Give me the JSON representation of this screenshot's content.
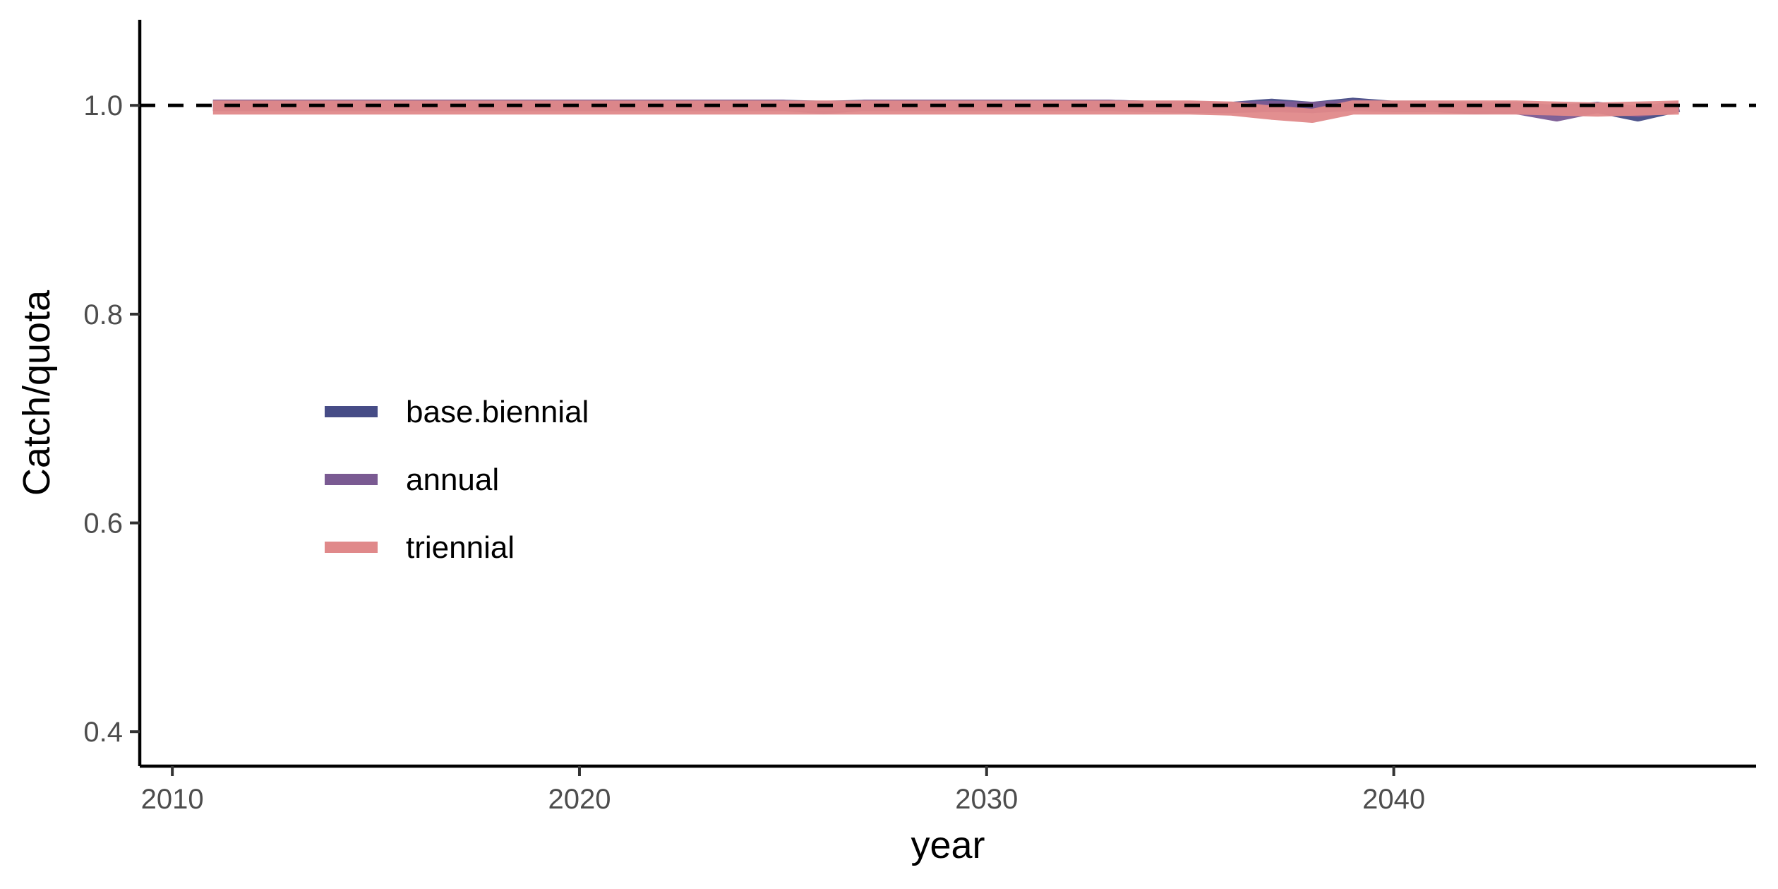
{
  "chart_data": {
    "type": "line",
    "xlabel": "year",
    "ylabel": "Catch/quota",
    "xlim": [
      2009.2,
      2048.9
    ],
    "ylim": [
      0.367,
      1.082
    ],
    "x_ticks": [
      "2010",
      "2020",
      "2030",
      "2040"
    ],
    "x_tick_values": [
      2010,
      2020,
      2030,
      2040
    ],
    "y_ticks": [
      "0.4",
      "0.6",
      "0.8",
      "1.0"
    ],
    "y_tick_values": [
      0.4,
      0.6,
      0.8,
      1.0
    ],
    "reference_line": {
      "y": 1.0,
      "style": "dashed",
      "color": "#000000"
    },
    "grid": false,
    "legend_position": "inside-left-middle",
    "x": [
      2011,
      2012,
      2013,
      2014,
      2015,
      2016,
      2017,
      2018,
      2019,
      2020,
      2021,
      2022,
      2023,
      2024,
      2025,
      2026,
      2027,
      2028,
      2029,
      2030,
      2031,
      2032,
      2033,
      2034,
      2035,
      2036,
      2037,
      2038,
      2039,
      2040,
      2041,
      2042,
      2043,
      2044,
      2045,
      2046,
      2047
    ],
    "series": [
      {
        "name": "base.biennial",
        "color": "#464c86",
        "values": [
          1.0,
          1.0,
          1.0,
          1.0,
          1.0,
          1.0,
          1.0,
          1.0,
          1.0,
          1.0,
          1.0,
          1.0,
          1.0,
          1.0,
          1.0,
          0.999,
          1.0,
          1.0,
          1.0,
          1.0,
          1.0,
          1.0,
          1.0,
          0.999,
          0.998,
          0.998,
          1.001,
          0.998,
          1.002,
          0.999,
          0.999,
          0.997,
          0.998,
          0.995,
          0.998,
          0.99,
          0.999
        ]
      },
      {
        "name": "annual",
        "color": "#7a5a92",
        "values": [
          1.0,
          1.0,
          1.0,
          1.0,
          1.0,
          1.0,
          1.0,
          1.0,
          1.0,
          1.0,
          1.0,
          1.0,
          1.0,
          1.0,
          1.0,
          0.997,
          1.0,
          1.0,
          1.0,
          1.0,
          1.0,
          1.0,
          1.0,
          0.999,
          0.999,
          0.998,
          0.999,
          0.998,
          1.0,
          0.999,
          0.999,
          0.998,
          0.997,
          0.99,
          0.998,
          0.994,
          0.999
        ]
      },
      {
        "name": "triennial",
        "color": "#e0898a",
        "values": [
          0.998,
          0.998,
          0.998,
          0.998,
          0.998,
          0.998,
          0.998,
          0.998,
          0.998,
          0.998,
          0.998,
          0.998,
          0.998,
          0.998,
          0.998,
          0.998,
          0.998,
          0.998,
          0.998,
          0.998,
          0.998,
          0.998,
          0.998,
          0.998,
          0.998,
          0.997,
          0.993,
          0.99,
          0.998,
          0.998,
          0.998,
          0.998,
          0.998,
          0.997,
          0.996,
          0.997,
          0.998
        ]
      }
    ]
  }
}
